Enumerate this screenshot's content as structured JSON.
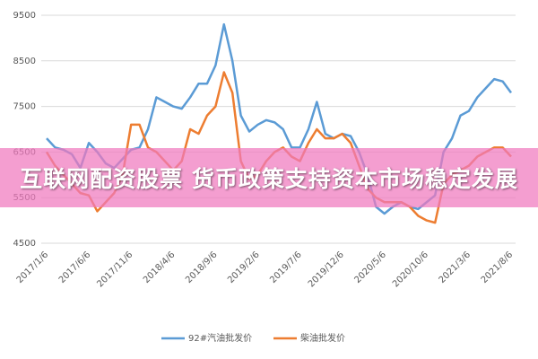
{
  "chart_data": {
    "type": "line",
    "annotation": "互联网配资股票 货币政策支持资本市场稳定发展",
    "categories": [
      "2017/1/6",
      null,
      null,
      null,
      null,
      "2017/6/6",
      null,
      null,
      null,
      null,
      "2017/11/6",
      null,
      null,
      null,
      null,
      "2018/4/6",
      null,
      null,
      null,
      null,
      "2018/9/6",
      null,
      null,
      null,
      null,
      "2019/2/6",
      null,
      null,
      null,
      null,
      "2019/7/6",
      null,
      null,
      null,
      null,
      "2019/12/6",
      null,
      null,
      null,
      null,
      "2020/5/6",
      null,
      null,
      null,
      null,
      "2020/10/6",
      null,
      null,
      null,
      null,
      "2021/3/6",
      null,
      null,
      null,
      null,
      "2021/8/6"
    ],
    "series": [
      {
        "name": "92#汽油批发价",
        "color": "#5b9bd5",
        "values": [
          6800,
          6600,
          6550,
          6450,
          6150,
          6700,
          6500,
          6250,
          6150,
          6350,
          6550,
          6600,
          7000,
          7700,
          7600,
          7500,
          7450,
          7700,
          8000,
          8000,
          8400,
          9300,
          8500,
          7300,
          6950,
          7100,
          7200,
          7150,
          7000,
          6600,
          6600,
          7000,
          7600,
          6900,
          6800,
          6900,
          6850,
          6500,
          6000,
          5300,
          5150,
          5300,
          5400,
          5300,
          5250,
          5400,
          5550,
          6500,
          6800,
          7300,
          7400,
          7700,
          7900,
          8100,
          8050,
          7800
        ]
      },
      {
        "name": "柴油批发价",
        "color": "#ed7d31",
        "values": [
          6500,
          6200,
          6000,
          5800,
          5600,
          5550,
          5200,
          5400,
          5600,
          6000,
          7100,
          7100,
          6600,
          6500,
          6300,
          6100,
          6300,
          7000,
          6900,
          7300,
          7500,
          8250,
          7800,
          6300,
          5900,
          6000,
          6300,
          6500,
          6600,
          6400,
          6300,
          6700,
          7000,
          6800,
          6800,
          6900,
          6700,
          6200,
          5700,
          5500,
          5400,
          5400,
          5400,
          5300,
          5100,
          5000,
          4950,
          5800,
          6000,
          6100,
          6200,
          6400,
          6500,
          6600,
          6600,
          6400
        ]
      }
    ],
    "ylim": [
      4500,
      9500
    ],
    "yticks": [
      4500,
      5500,
      6500,
      7500,
      8500,
      9500
    ],
    "grid": true
  }
}
